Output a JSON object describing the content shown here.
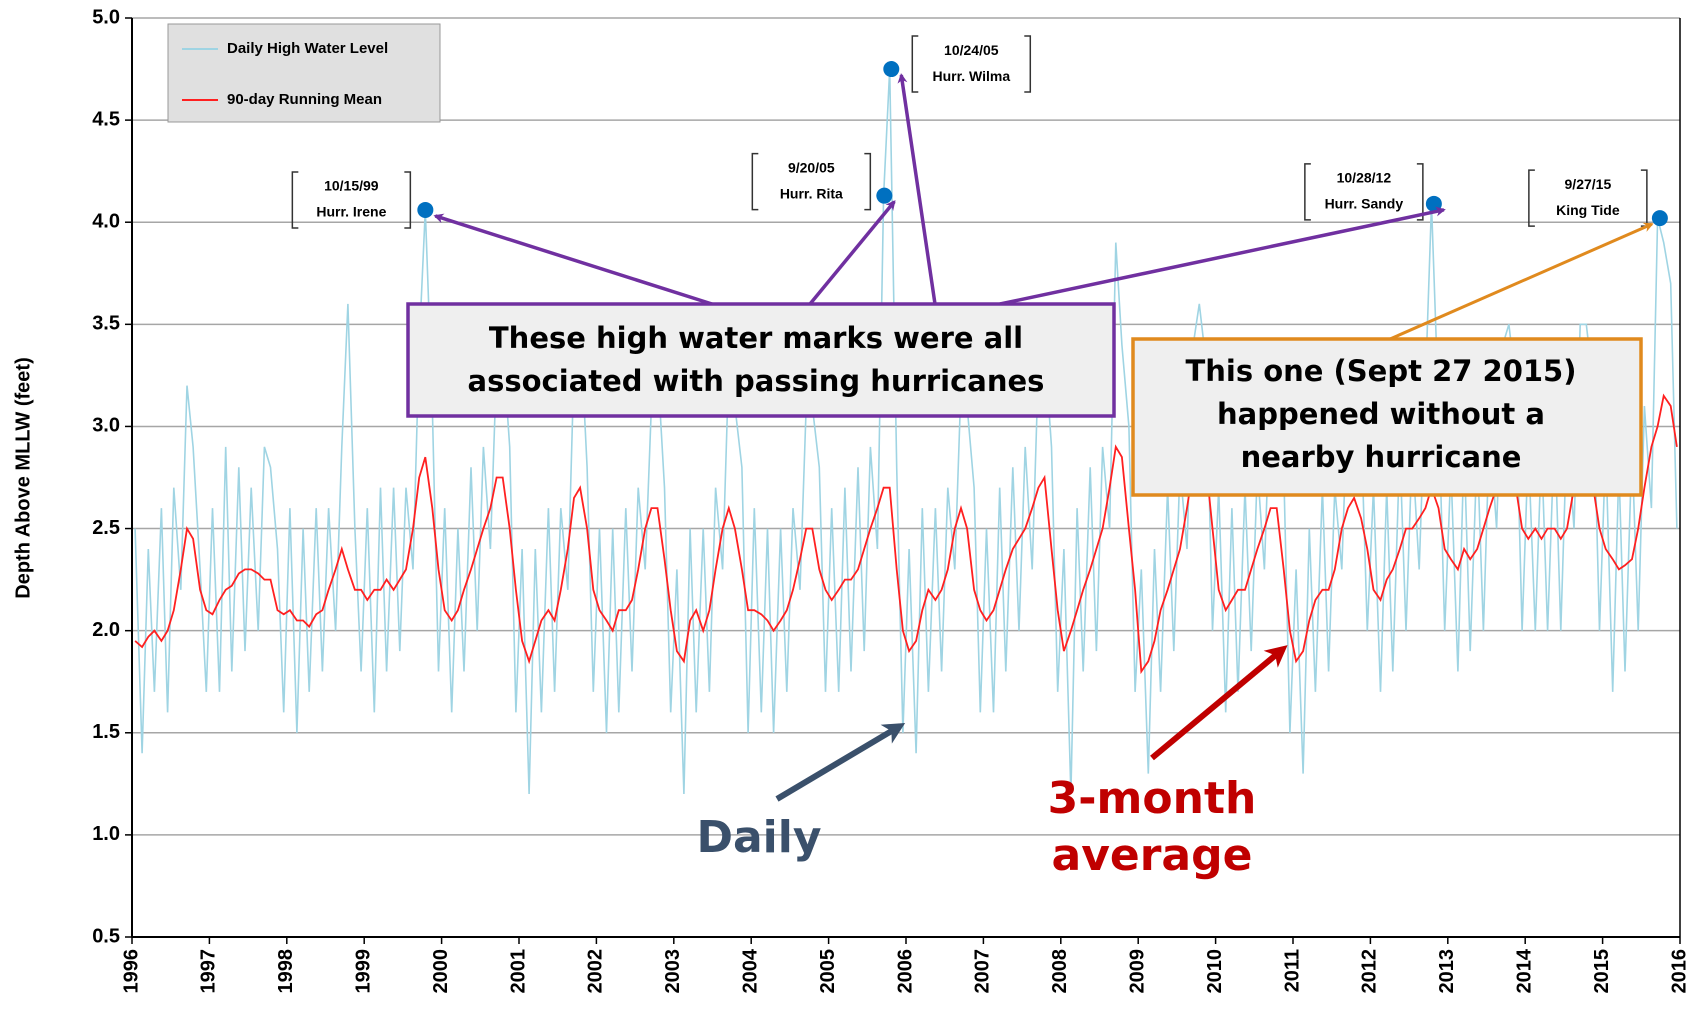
{
  "chart_data": {
    "type": "line",
    "y_label": "Depth Above MLLW (feet)",
    "xlim": [
      1996,
      2016
    ],
    "xticks": [
      1996,
      1997,
      1998,
      1999,
      2000,
      2001,
      2002,
      2003,
      2004,
      2005,
      2006,
      2007,
      2008,
      2009,
      2010,
      2011,
      2012,
      2013,
      2014,
      2015,
      2016
    ],
    "ylim": [
      0.5,
      5.0
    ],
    "yticks": [
      0.5,
      {
        "value": 1,
        "label": "1.0"
      },
      1.5,
      {
        "value": 2,
        "label": "2.0"
      },
      2.5,
      {
        "value": 3,
        "label": "3.0"
      },
      3.5,
      {
        "value": 4,
        "label": "4.0"
      },
      4.5,
      {
        "value": 5,
        "label": "5.0"
      }
    ],
    "grid": true,
    "x": [
      1996.04,
      1996.13,
      1996.21,
      1996.29,
      1996.38,
      1996.46,
      1996.54,
      1996.63,
      1996.71,
      1996.79,
      1996.88,
      1996.96,
      1997.04,
      1997.13,
      1997.21,
      1997.29,
      1997.38,
      1997.46,
      1997.54,
      1997.63,
      1997.71,
      1997.79,
      1997.88,
      1997.96,
      1998.04,
      1998.13,
      1998.21,
      1998.29,
      1998.38,
      1998.46,
      1998.54,
      1998.63,
      1998.71,
      1998.79,
      1998.88,
      1998.96,
      1999.04,
      1999.13,
      1999.21,
      1999.29,
      1999.38,
      1999.46,
      1999.54,
      1999.63,
      1999.71,
      1999.79,
      1999.88,
      1999.96,
      2000.04,
      2000.13,
      2000.21,
      2000.29,
      2000.38,
      2000.46,
      2000.54,
      2000.63,
      2000.71,
      2000.79,
      2000.88,
      2000.96,
      2001.04,
      2001.13,
      2001.21,
      2001.29,
      2001.38,
      2001.46,
      2001.54,
      2001.63,
      2001.71,
      2001.79,
      2001.88,
      2001.96,
      2002.04,
      2002.13,
      2002.21,
      2002.29,
      2002.38,
      2002.46,
      2002.54,
      2002.63,
      2002.71,
      2002.79,
      2002.88,
      2002.96,
      2003.04,
      2003.13,
      2003.21,
      2003.29,
      2003.38,
      2003.46,
      2003.54,
      2003.63,
      2003.71,
      2003.79,
      2003.88,
      2003.96,
      2004.04,
      2004.13,
      2004.21,
      2004.29,
      2004.38,
      2004.46,
      2004.54,
      2004.63,
      2004.71,
      2004.79,
      2004.88,
      2004.96,
      2005.04,
      2005.13,
      2005.21,
      2005.29,
      2005.38,
      2005.46,
      2005.54,
      2005.63,
      2005.71,
      2005.79,
      2005.88,
      2005.96,
      2006.04,
      2006.13,
      2006.21,
      2006.29,
      2006.38,
      2006.46,
      2006.54,
      2006.63,
      2006.71,
      2006.79,
      2006.88,
      2006.96,
      2007.04,
      2007.13,
      2007.21,
      2007.29,
      2007.38,
      2007.46,
      2007.54,
      2007.63,
      2007.71,
      2007.79,
      2007.88,
      2007.96,
      2008.04,
      2008.13,
      2008.21,
      2008.29,
      2008.38,
      2008.46,
      2008.54,
      2008.63,
      2008.71,
      2008.79,
      2008.88,
      2008.96,
      2009.04,
      2009.13,
      2009.21,
      2009.29,
      2009.38,
      2009.46,
      2009.54,
      2009.63,
      2009.71,
      2009.79,
      2009.88,
      2009.96,
      2010.04,
      2010.13,
      2010.21,
      2010.29,
      2010.38,
      2010.46,
      2010.54,
      2010.63,
      2010.71,
      2010.79,
      2010.88,
      2010.96,
      2011.04,
      2011.13,
      2011.21,
      2011.29,
      2011.38,
      2011.46,
      2011.54,
      2011.63,
      2011.71,
      2011.79,
      2011.88,
      2011.96,
      2012.04,
      2012.13,
      2012.21,
      2012.29,
      2012.38,
      2012.46,
      2012.54,
      2012.63,
      2012.71,
      2012.79,
      2012.88,
      2012.96,
      2013.04,
      2013.13,
      2013.21,
      2013.29,
      2013.38,
      2013.46,
      2013.54,
      2013.63,
      2013.71,
      2013.79,
      2013.88,
      2013.96,
      2014.04,
      2014.13,
      2014.21,
      2014.29,
      2014.38,
      2014.46,
      2014.54,
      2014.63,
      2014.71,
      2014.79,
      2014.88,
      2014.96,
      2015.04,
      2015.13,
      2015.21,
      2015.29,
      2015.38,
      2015.46,
      2015.54,
      2015.63,
      2015.71,
      2015.79,
      2015.88,
      2015.96
    ],
    "series": [
      {
        "name": "Daily High Water Level",
        "color": "#9fd4e3",
        "values": [
          2.5,
          1.4,
          2.4,
          1.7,
          2.6,
          1.6,
          2.7,
          2.2,
          3.2,
          2.9,
          2.3,
          1.7,
          2.6,
          1.7,
          2.9,
          1.8,
          2.8,
          1.9,
          2.7,
          2.0,
          2.9,
          2.8,
          2.4,
          1.6,
          2.6,
          1.5,
          2.5,
          1.7,
          2.6,
          1.8,
          2.6,
          2.0,
          2.9,
          3.6,
          2.5,
          1.8,
          2.6,
          1.6,
          2.7,
          1.8,
          2.7,
          1.9,
          2.7,
          2.3,
          3.4,
          4.06,
          3.1,
          1.8,
          2.6,
          1.6,
          2.5,
          1.8,
          2.8,
          2.0,
          2.9,
          2.4,
          3.3,
          3.4,
          2.9,
          1.6,
          2.4,
          1.2,
          2.4,
          1.6,
          2.6,
          1.7,
          2.6,
          2.2,
          3.3,
          3.5,
          2.8,
          1.7,
          2.5,
          1.5,
          2.5,
          1.6,
          2.6,
          1.8,
          2.7,
          2.3,
          3.1,
          3.3,
          2.7,
          1.6,
          2.3,
          1.2,
          2.5,
          1.6,
          2.5,
          1.7,
          2.7,
          2.3,
          3.3,
          3.1,
          2.8,
          1.5,
          2.6,
          1.6,
          2.5,
          1.5,
          2.5,
          1.7,
          2.6,
          2.2,
          3.1,
          3.1,
          2.8,
          1.7,
          2.6,
          1.7,
          2.7,
          1.8,
          2.8,
          1.9,
          2.9,
          2.4,
          4.13,
          4.75,
          2.8,
          1.5,
          2.4,
          1.4,
          2.6,
          1.7,
          2.6,
          1.8,
          2.7,
          2.3,
          3.2,
          3.1,
          2.7,
          1.6,
          2.5,
          1.6,
          2.7,
          1.8,
          2.8,
          2.0,
          2.9,
          2.3,
          3.3,
          3.4,
          2.9,
          1.7,
          2.4,
          1.2,
          2.6,
          1.8,
          2.8,
          1.9,
          2.9,
          2.5,
          3.9,
          3.4,
          3.0,
          1.7,
          2.3,
          1.3,
          2.4,
          1.7,
          2.7,
          1.9,
          2.8,
          2.4,
          3.4,
          3.6,
          3.3,
          2.0,
          2.7,
          1.6,
          2.6,
          1.7,
          2.7,
          1.9,
          2.8,
          2.3,
          3.2,
          3.2,
          2.8,
          1.5,
          2.3,
          1.3,
          2.5,
          1.7,
          2.7,
          1.8,
          2.7,
          2.3,
          3.2,
          3.4,
          3.0,
          2.0,
          2.7,
          1.7,
          2.7,
          1.8,
          2.9,
          2.0,
          2.9,
          2.3,
          3.2,
          4.09,
          3.1,
          2.0,
          2.8,
          1.8,
          2.9,
          1.9,
          2.9,
          2.0,
          3.0,
          2.5,
          3.4,
          3.5,
          3.2,
          2.0,
          2.9,
          2.0,
          2.9,
          2.0,
          3.0,
          2.0,
          3.0,
          2.5,
          3.5,
          3.5,
          3.2,
          2.0,
          2.9,
          1.7,
          2.8,
          1.8,
          2.9,
          2.0,
          3.1,
          2.6,
          4.02,
          3.9,
          3.7,
          2.5
        ]
      },
      {
        "name": "90-day Running Mean",
        "color": "#ff2020",
        "values": [
          1.95,
          1.92,
          1.97,
          2.0,
          1.95,
          2.0,
          2.1,
          2.3,
          2.5,
          2.45,
          2.2,
          2.1,
          2.08,
          2.15,
          2.2,
          2.22,
          2.28,
          2.3,
          2.3,
          2.28,
          2.25,
          2.25,
          2.1,
          2.08,
          2.1,
          2.05,
          2.05,
          2.02,
          2.08,
          2.1,
          2.2,
          2.3,
          2.4,
          2.3,
          2.2,
          2.2,
          2.15,
          2.2,
          2.2,
          2.25,
          2.2,
          2.25,
          2.3,
          2.5,
          2.75,
          2.85,
          2.6,
          2.3,
          2.1,
          2.05,
          2.1,
          2.2,
          2.3,
          2.4,
          2.5,
          2.6,
          2.75,
          2.75,
          2.5,
          2.2,
          1.95,
          1.85,
          1.95,
          2.05,
          2.1,
          2.05,
          2.2,
          2.4,
          2.65,
          2.7,
          2.5,
          2.2,
          2.1,
          2.05,
          2.0,
          2.1,
          2.1,
          2.15,
          2.3,
          2.5,
          2.6,
          2.6,
          2.35,
          2.1,
          1.9,
          1.85,
          2.05,
          2.1,
          2.0,
          2.1,
          2.3,
          2.5,
          2.6,
          2.5,
          2.3,
          2.1,
          2.1,
          2.08,
          2.05,
          2.0,
          2.05,
          2.1,
          2.2,
          2.35,
          2.5,
          2.5,
          2.3,
          2.2,
          2.15,
          2.2,
          2.25,
          2.25,
          2.3,
          2.4,
          2.5,
          2.6,
          2.7,
          2.7,
          2.3,
          2.0,
          1.9,
          1.95,
          2.1,
          2.2,
          2.15,
          2.2,
          2.3,
          2.5,
          2.6,
          2.5,
          2.2,
          2.1,
          2.05,
          2.1,
          2.2,
          2.3,
          2.4,
          2.45,
          2.5,
          2.6,
          2.7,
          2.75,
          2.4,
          2.1,
          1.9,
          2.0,
          2.1,
          2.2,
          2.3,
          2.4,
          2.5,
          2.7,
          2.9,
          2.85,
          2.5,
          2.2,
          1.8,
          1.85,
          1.95,
          2.1,
          2.2,
          2.3,
          2.4,
          2.6,
          2.8,
          2.9,
          2.8,
          2.5,
          2.2,
          2.1,
          2.15,
          2.2,
          2.2,
          2.3,
          2.4,
          2.5,
          2.6,
          2.6,
          2.3,
          2.0,
          1.85,
          1.9,
          2.05,
          2.15,
          2.2,
          2.2,
          2.3,
          2.5,
          2.6,
          2.65,
          2.55,
          2.4,
          2.2,
          2.15,
          2.25,
          2.3,
          2.4,
          2.5,
          2.5,
          2.55,
          2.6,
          2.7,
          2.6,
          2.4,
          2.35,
          2.3,
          2.4,
          2.35,
          2.4,
          2.5,
          2.6,
          2.7,
          2.8,
          2.85,
          2.7,
          2.5,
          2.45,
          2.5,
          2.45,
          2.5,
          2.5,
          2.45,
          2.5,
          2.7,
          2.9,
          2.95,
          2.7,
          2.5,
          2.4,
          2.35,
          2.3,
          2.32,
          2.35,
          2.5,
          2.7,
          2.9,
          3.0,
          3.15,
          3.1,
          2.9
        ]
      }
    ],
    "events_color": "#0070c0",
    "events": [
      {
        "date": "10/15/99",
        "name": "Hurr. Irene",
        "x": 1999.79,
        "value": 4.06
      },
      {
        "date": "9/20/05",
        "name": "Hurr. Rita",
        "x": 2005.72,
        "value": 4.13
      },
      {
        "date": "10/24/05",
        "name": "Hurr. Wilma",
        "x": 2005.81,
        "value": 4.75
      },
      {
        "date": "10/28/12",
        "name": "Hurr. Sandy",
        "x": 2012.82,
        "value": 4.09
      },
      {
        "date": "9/27/15",
        "name": "King Tide",
        "x": 2015.74,
        "value": 4.02
      }
    ],
    "hurricane_note": [
      "These high water marks were all",
      "associated with passing hurricanes"
    ],
    "king_tide_note": [
      "This one (Sept 27 2015)",
      "happened without a",
      "nearby hurricane"
    ],
    "daily_note": "Daily",
    "average_note": [
      "3-month",
      "average"
    ]
  }
}
